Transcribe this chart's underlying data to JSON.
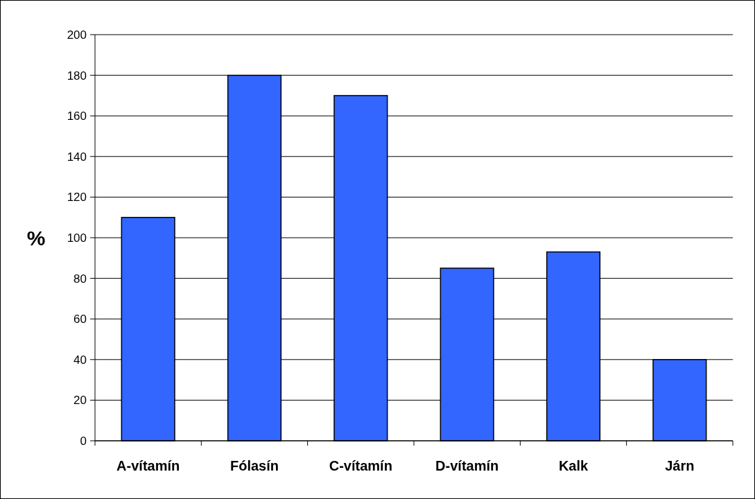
{
  "chart_data": {
    "type": "bar",
    "ylabel": "%",
    "categories": [
      "A-vítamín",
      "Fólasín",
      "C-vítamín",
      "D-vítamín",
      "Kalk",
      "Járn"
    ],
    "values": [
      110,
      180,
      170,
      85,
      93,
      40
    ],
    "color": "#3366ff",
    "ylim": [
      0,
      200
    ],
    "yticks": [
      0,
      20,
      40,
      60,
      80,
      100,
      120,
      140,
      160,
      180,
      200
    ],
    "grid": "y"
  }
}
